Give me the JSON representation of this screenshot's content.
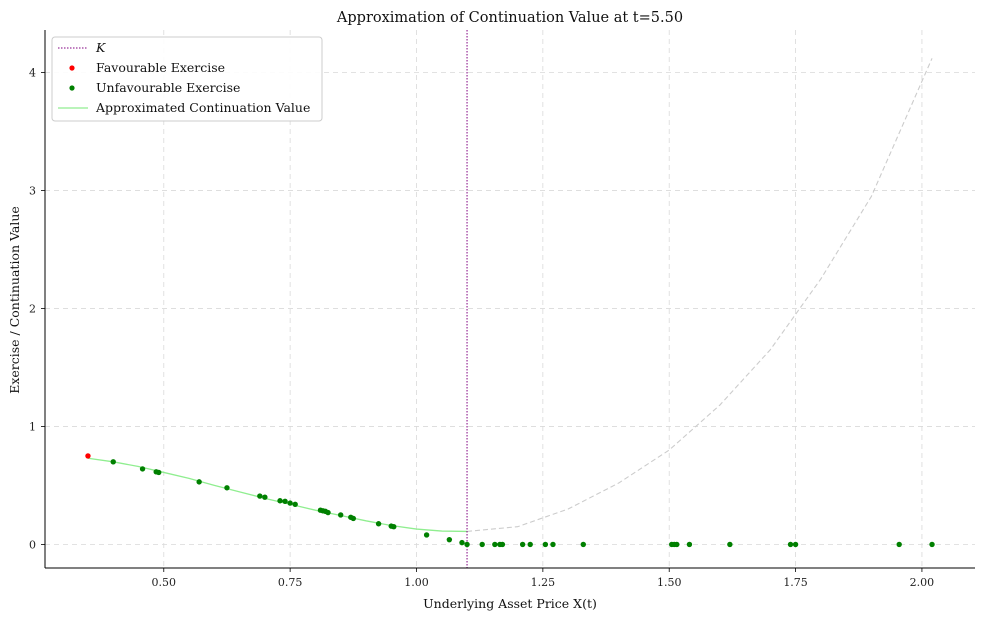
{
  "chart_data": {
    "type": "scatter",
    "title": "Approximation of Continuation Value at t=5.50",
    "xlabel": "Underlying Asset Price X(t)",
    "ylabel": "Exercise / Continuation Value",
    "xlim": [
      0.265,
      2.105
    ],
    "ylim": [
      -0.2,
      4.36
    ],
    "xticks": [
      0.5,
      0.75,
      1.0,
      1.25,
      1.5,
      1.75,
      2.0
    ],
    "xtick_labels": [
      "0.50",
      "0.75",
      "1.00",
      "1.25",
      "1.50",
      "1.75",
      "2.00"
    ],
    "yticks": [
      0,
      1,
      2,
      3,
      4
    ],
    "ytick_labels": [
      "0",
      "1",
      "2",
      "3",
      "4"
    ],
    "grid": true,
    "legend_position": "top-left",
    "strike": {
      "name": "K",
      "x": 1.1,
      "color": "#800080"
    },
    "series": [
      {
        "name": "Favourable Exercise",
        "color": "#ff0000",
        "points": [
          [
            0.35,
            0.75
          ]
        ]
      },
      {
        "name": "Unfavourable Exercise",
        "color": "#008000",
        "points": [
          [
            0.4,
            0.7
          ],
          [
            0.458,
            0.64
          ],
          [
            0.485,
            0.615
          ],
          [
            0.49,
            0.61
          ],
          [
            0.57,
            0.53
          ],
          [
            0.625,
            0.48
          ],
          [
            0.69,
            0.41
          ],
          [
            0.7,
            0.4
          ],
          [
            0.73,
            0.37
          ],
          [
            0.74,
            0.365
          ],
          [
            0.75,
            0.35
          ],
          [
            0.76,
            0.34
          ],
          [
            0.81,
            0.29
          ],
          [
            0.815,
            0.285
          ],
          [
            0.82,
            0.28
          ],
          [
            0.825,
            0.27
          ],
          [
            0.85,
            0.25
          ],
          [
            0.87,
            0.23
          ],
          [
            0.875,
            0.22
          ],
          [
            0.925,
            0.175
          ],
          [
            0.95,
            0.155
          ],
          [
            0.955,
            0.15
          ],
          [
            1.02,
            0.08
          ],
          [
            1.065,
            0.04
          ],
          [
            1.09,
            0.015
          ],
          [
            1.1,
            0.0
          ],
          [
            1.13,
            0.0
          ],
          [
            1.155,
            0.0
          ],
          [
            1.165,
            0.0
          ],
          [
            1.17,
            0.0
          ],
          [
            1.21,
            0.0
          ],
          [
            1.225,
            0.0
          ],
          [
            1.255,
            0.0
          ],
          [
            1.27,
            0.0
          ],
          [
            1.33,
            0.0
          ],
          [
            1.505,
            0.0
          ],
          [
            1.51,
            0.0
          ],
          [
            1.515,
            0.0
          ],
          [
            1.54,
            0.0
          ],
          [
            1.62,
            0.0
          ],
          [
            1.74,
            0.0
          ],
          [
            1.75,
            0.0
          ],
          [
            1.955,
            0.0
          ],
          [
            2.02,
            0.0
          ]
        ]
      },
      {
        "name": "Approximated Continuation Value",
        "color": "#90ee90",
        "curve": {
          "x": [
            0.35,
            0.4,
            0.45,
            0.5,
            0.55,
            0.6,
            0.65,
            0.7,
            0.75,
            0.8,
            0.85,
            0.9,
            0.95,
            1.0,
            1.05,
            1.1
          ],
          "y": [
            0.73,
            0.7,
            0.66,
            0.61,
            0.56,
            0.5,
            0.445,
            0.39,
            0.34,
            0.29,
            0.245,
            0.2,
            0.16,
            0.13,
            0.113,
            0.11
          ]
        }
      }
    ],
    "extrapolation": {
      "color": "#cccccc",
      "x": [
        1.1,
        1.2,
        1.3,
        1.4,
        1.5,
        1.6,
        1.7,
        1.8,
        1.9,
        2.02
      ],
      "y": [
        0.11,
        0.15,
        0.3,
        0.52,
        0.8,
        1.18,
        1.65,
        2.25,
        2.95,
        4.12
      ]
    }
  }
}
